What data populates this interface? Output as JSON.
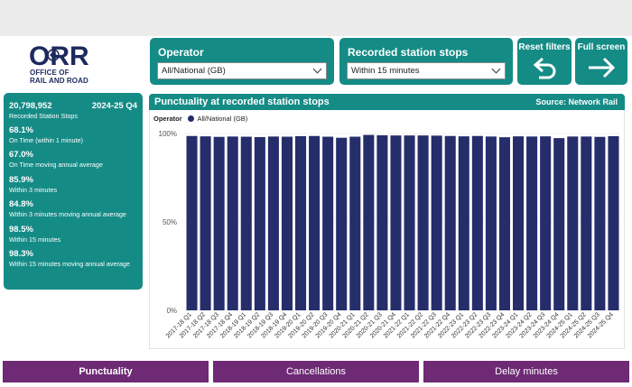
{
  "logo": {
    "brand": "ORR",
    "line1": "OFFICE OF",
    "line2": "RAIL AND ROAD"
  },
  "filters": {
    "operator": {
      "title": "Operator",
      "value": "All/National (GB)"
    },
    "stops": {
      "title": "Recorded station stops",
      "value": "Within 15 minutes"
    }
  },
  "buttons": {
    "reset": "Reset filters",
    "fullscreen": "Full screen"
  },
  "stats": {
    "count": "20,798,952",
    "period": "2024-25 Q4",
    "count_label": "Recorded Station Stops",
    "items": [
      {
        "value": "68.1%",
        "label": "On Time (within 1 minute)"
      },
      {
        "value": "67.0%",
        "label": "On Time moving annual average"
      },
      {
        "value": "85.9%",
        "label": "Within 3 minutes"
      },
      {
        "value": "84.8%",
        "label": "Within 3 minutes moving annual average"
      },
      {
        "value": "98.5%",
        "label": "Within 15 minutes"
      },
      {
        "value": "98.3%",
        "label": "Within 15 minutes moving annual average"
      }
    ]
  },
  "chart_header": {
    "title": "Punctuality at recorded station stops",
    "source": "Source: Network Rail"
  },
  "legend": {
    "title": "Operator",
    "entry": "All/National (GB)"
  },
  "colors": {
    "teal": "#158b86",
    "bar": "#262d6b",
    "nav": "#6e2a74"
  },
  "nav": {
    "tabs": [
      "Punctuality",
      "Cancellations",
      "Delay minutes"
    ],
    "active": "Punctuality"
  },
  "chart_data": {
    "type": "bar",
    "series": [
      {
        "name": "All/National (GB)",
        "color": "#262d6b"
      }
    ],
    "categories": [
      "2017-18 Q1",
      "2017-18 Q2",
      "2017-18 Q3",
      "2017-18 Q4",
      "2018-19 Q1",
      "2018-19 Q2",
      "2018-19 Q3",
      "2018-19 Q4",
      "2019-20 Q1",
      "2019-20 Q2",
      "2019-20 Q3",
      "2019-20 Q4",
      "2020-21 Q1",
      "2020-21 Q2",
      "2020-21 Q3",
      "2020-21 Q4",
      "2021-22 Q1",
      "2021-22 Q2",
      "2021-22 Q3",
      "2021-22 Q4",
      "2022-23 Q1",
      "2022-23 Q2",
      "2022-23 Q3",
      "2022-23 Q4",
      "2023-24 Q1",
      "2023-24 Q2",
      "2023-24 Q3",
      "2023-24 Q4",
      "2024-25 Q1",
      "2024-25 Q2",
      "2024-25 Q3",
      "2024-25 Q4"
    ],
    "values": [
      98.6,
      98.4,
      98.1,
      98.3,
      98.2,
      98.0,
      98.3,
      98.2,
      98.5,
      98.6,
      98.2,
      97.6,
      98.2,
      99.2,
      99.0,
      98.9,
      98.9,
      98.9,
      98.8,
      98.6,
      98.4,
      98.6,
      98.3,
      97.9,
      98.4,
      98.3,
      98.4,
      97.4,
      98.3,
      98.3,
      98.1,
      98.5
    ],
    "yticks": [
      "100%",
      "50%",
      "0%"
    ],
    "ylim": [
      0,
      100
    ],
    "grid": true,
    "legend_position": "top-left"
  }
}
